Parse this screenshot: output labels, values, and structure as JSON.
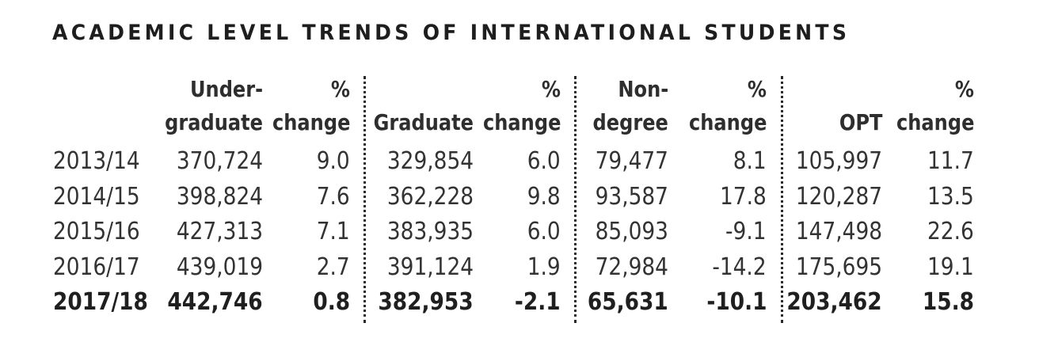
{
  "title": "ACADEMIC LEVEL TRENDS OF INTERNATIONAL STUDENTS",
  "chart_data": {
    "type": "table",
    "title": "ACADEMIC LEVEL TRENDS OF INTERNATIONAL STUDENTS",
    "columns": [
      {
        "line1": "",
        "line2": ""
      },
      {
        "line1": "Under-",
        "line2": "graduate"
      },
      {
        "line1": "%",
        "line2": "change"
      },
      {
        "line1": "",
        "line2": "Graduate"
      },
      {
        "line1": "%",
        "line2": "change"
      },
      {
        "line1": "Non-",
        "line2": "degree"
      },
      {
        "line1": "%",
        "line2": "change"
      },
      {
        "line1": "",
        "line2": "OPT"
      },
      {
        "line1": "%",
        "line2": "change"
      }
    ],
    "rows": [
      [
        "2013/14",
        "370,724",
        "9.0",
        "329,854",
        "6.0",
        "79,477",
        "8.1",
        "105,997",
        "11.7"
      ],
      [
        "2014/15",
        "398,824",
        "7.6",
        "362,228",
        "9.8",
        "93,587",
        "17.8",
        "120,287",
        "13.5"
      ],
      [
        "2015/16",
        "427,313",
        "7.1",
        "383,935",
        "6.0",
        "85,093",
        "-9.1",
        "147,498",
        "22.6"
      ],
      [
        "2016/17",
        "439,019",
        "2.7",
        "391,124",
        "1.9",
        "72,984",
        "-14.2",
        "175,695",
        "19.1"
      ],
      [
        "2017/18",
        "442,746",
        "0.8",
        "382,953",
        "-2.1",
        "65,631",
        "-10.1",
        "203,462",
        "15.8"
      ]
    ],
    "highlighted_row": "2017/18"
  }
}
